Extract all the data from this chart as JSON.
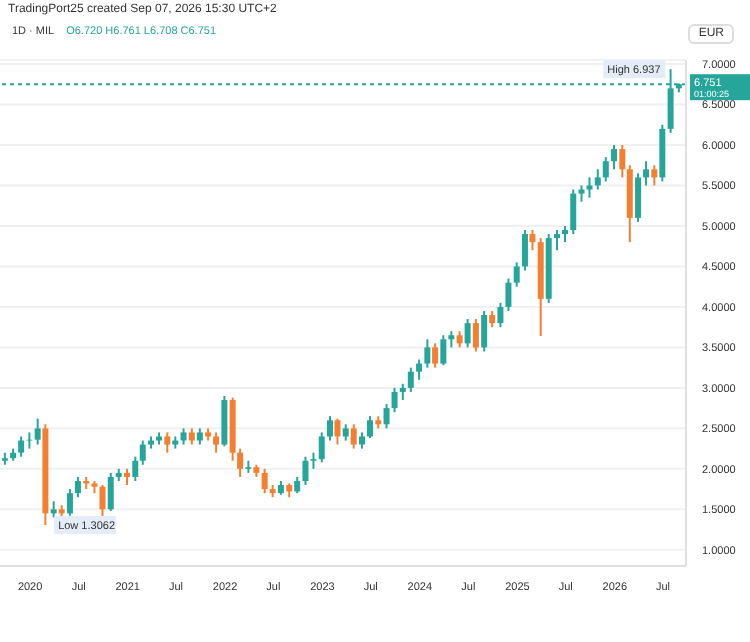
{
  "chart_data": {
    "type": "candlestick",
    "title": "1D · MIL",
    "subtitle": "TradingPort25 created Sep 07, 2026 15:30 UTC+2",
    "ylabel": "EUR",
    "annotations": [
      "O6.720 H6.761 L6.708 C6.751",
      "01:00:25",
      {
        "text": "High 6.937",
        "x": "2026-08",
        "y": 6.937
      },
      {
        "text": "Low 1.3062",
        "x": "2020-03",
        "y": 1.3062
      }
    ],
    "x": [
      "2019-10",
      "2019-11",
      "2019-12",
      "2020-01",
      "2020-02",
      "2020-03",
      "2020-04",
      "2020-05",
      "2020-06",
      "2020-07",
      "2020-08",
      "2020-09",
      "2020-10",
      "2020-11",
      "2020-12",
      "2021-01",
      "2021-02",
      "2021-03",
      "2021-04",
      "2021-05",
      "2021-06",
      "2021-07",
      "2021-08",
      "2021-09",
      "2021-10",
      "2021-11",
      "2021-12",
      "2022-01",
      "2022-02",
      "2022-03",
      "2022-04",
      "2022-05",
      "2022-06",
      "2022-07",
      "2022-08",
      "2022-09",
      "2022-10",
      "2022-11",
      "2022-12",
      "2023-01",
      "2023-02",
      "2023-03",
      "2023-04",
      "2023-05",
      "2023-06",
      "2023-07",
      "2023-08",
      "2023-09",
      "2023-10",
      "2023-11",
      "2023-12",
      "2024-01",
      "2024-02",
      "2024-03",
      "2024-04",
      "2024-05",
      "2024-06",
      "2024-07",
      "2024-08",
      "2024-09",
      "2024-10",
      "2024-11",
      "2024-12",
      "2025-01",
      "2025-02",
      "2025-03",
      "2025-04",
      "2025-05",
      "2025-06",
      "2025-07",
      "2025-08",
      "2025-09",
      "2025-10",
      "2025-11",
      "2025-12",
      "2026-01",
      "2026-02",
      "2026-03",
      "2026-04",
      "2026-05",
      "2026-06",
      "2026-07",
      "2026-08",
      "2026-09"
    ],
    "ohlc": [
      [
        2.1,
        2.2,
        2.05,
        2.13
      ],
      [
        2.13,
        2.25,
        2.1,
        2.2
      ],
      [
        2.2,
        2.4,
        2.15,
        2.35
      ],
      [
        2.35,
        2.45,
        2.25,
        2.36
      ],
      [
        2.36,
        2.62,
        2.3,
        2.5
      ],
      [
        2.5,
        2.55,
        1.3062,
        1.45
      ],
      [
        1.45,
        1.6,
        1.4,
        1.5
      ],
      [
        1.5,
        1.55,
        1.4,
        1.45
      ],
      [
        1.45,
        1.75,
        1.42,
        1.7
      ],
      [
        1.7,
        1.9,
        1.65,
        1.85
      ],
      [
        1.85,
        1.9,
        1.75,
        1.82
      ],
      [
        1.82,
        1.85,
        1.7,
        1.78
      ],
      [
        1.78,
        1.8,
        1.37,
        1.5
      ],
      [
        1.5,
        1.95,
        1.48,
        1.9
      ],
      [
        1.9,
        2.0,
        1.85,
        1.95
      ],
      [
        1.95,
        2.0,
        1.8,
        1.9
      ],
      [
        1.9,
        2.15,
        1.85,
        2.1
      ],
      [
        2.1,
        2.35,
        2.05,
        2.3
      ],
      [
        2.3,
        2.4,
        2.25,
        2.35
      ],
      [
        2.35,
        2.45,
        2.3,
        2.4
      ],
      [
        2.4,
        2.45,
        2.2,
        2.3
      ],
      [
        2.3,
        2.4,
        2.25,
        2.35
      ],
      [
        2.35,
        2.5,
        2.3,
        2.45
      ],
      [
        2.45,
        2.5,
        2.3,
        2.35
      ],
      [
        2.35,
        2.5,
        2.3,
        2.45
      ],
      [
        2.45,
        2.5,
        2.35,
        2.4
      ],
      [
        2.4,
        2.45,
        2.2,
        2.3
      ],
      [
        2.3,
        2.9,
        2.28,
        2.85
      ],
      [
        2.85,
        2.88,
        2.1,
        2.2
      ],
      [
        2.2,
        2.25,
        1.9,
        2.0
      ],
      [
        2.0,
        2.1,
        1.95,
        2.02
      ],
      [
        2.02,
        2.05,
        1.9,
        1.95
      ],
      [
        1.95,
        2.0,
        1.7,
        1.75
      ],
      [
        1.75,
        1.8,
        1.65,
        1.7
      ],
      [
        1.7,
        1.85,
        1.68,
        1.8
      ],
      [
        1.8,
        1.82,
        1.65,
        1.72
      ],
      [
        1.72,
        1.9,
        1.7,
        1.85
      ],
      [
        1.85,
        2.15,
        1.8,
        2.1
      ],
      [
        2.1,
        2.2,
        2.0,
        2.12
      ],
      [
        2.12,
        2.45,
        2.08,
        2.4
      ],
      [
        2.4,
        2.65,
        2.35,
        2.6
      ],
      [
        2.6,
        2.62,
        2.3,
        2.4
      ],
      [
        2.4,
        2.55,
        2.35,
        2.5
      ],
      [
        2.5,
        2.55,
        2.25,
        2.3
      ],
      [
        2.3,
        2.45,
        2.25,
        2.4
      ],
      [
        2.4,
        2.65,
        2.38,
        2.6
      ],
      [
        2.6,
        2.65,
        2.5,
        2.55
      ],
      [
        2.55,
        2.8,
        2.5,
        2.75
      ],
      [
        2.75,
        3.0,
        2.7,
        2.95
      ],
      [
        2.95,
        3.05,
        2.85,
        3.0
      ],
      [
        3.0,
        3.25,
        2.95,
        3.2
      ],
      [
        3.2,
        3.35,
        3.1,
        3.3
      ],
      [
        3.3,
        3.6,
        3.25,
        3.5
      ],
      [
        3.5,
        3.55,
        3.25,
        3.3
      ],
      [
        3.3,
        3.65,
        3.28,
        3.6
      ],
      [
        3.6,
        3.7,
        3.5,
        3.65
      ],
      [
        3.65,
        3.7,
        3.5,
        3.55
      ],
      [
        3.55,
        3.85,
        3.5,
        3.8
      ],
      [
        3.8,
        3.85,
        3.45,
        3.5
      ],
      [
        3.5,
        3.95,
        3.45,
        3.9
      ],
      [
        3.9,
        3.95,
        3.75,
        3.8
      ],
      [
        3.8,
        4.05,
        3.75,
        4.0
      ],
      [
        4.0,
        4.35,
        3.95,
        4.3
      ],
      [
        4.3,
        4.55,
        4.25,
        4.5
      ],
      [
        4.5,
        4.95,
        4.45,
        4.9
      ],
      [
        4.9,
        4.95,
        4.7,
        4.8
      ],
      [
        4.8,
        4.85,
        3.64,
        4.1
      ],
      [
        4.1,
        4.9,
        4.05,
        4.85
      ],
      [
        4.85,
        4.95,
        4.7,
        4.9
      ],
      [
        4.9,
        5.0,
        4.8,
        4.95
      ],
      [
        4.95,
        5.45,
        4.9,
        5.4
      ],
      [
        5.4,
        5.5,
        5.3,
        5.45
      ],
      [
        5.45,
        5.6,
        5.35,
        5.5
      ],
      [
        5.5,
        5.7,
        5.45,
        5.6
      ],
      [
        5.6,
        5.85,
        5.55,
        5.8
      ],
      [
        5.8,
        6.0,
        5.7,
        5.95
      ],
      [
        5.95,
        6.0,
        5.6,
        5.7
      ],
      [
        5.7,
        5.75,
        4.8,
        5.1
      ],
      [
        5.1,
        5.65,
        5.05,
        5.6
      ],
      [
        5.6,
        5.8,
        5.5,
        5.7
      ],
      [
        5.7,
        5.75,
        5.5,
        5.6
      ],
      [
        5.6,
        6.25,
        5.55,
        6.2
      ],
      [
        6.2,
        6.937,
        6.15,
        6.7
      ],
      [
        6.7,
        6.761,
        6.65,
        6.751
      ]
    ],
    "colors": [
      "#26a69a",
      "#26a69a",
      "#26a69a",
      "#26a69a",
      "#26a69a",
      "#f57f31",
      "#26a69a",
      "#f57f31",
      "#26a69a",
      "#26a69a",
      "#f57f31",
      "#f57f31",
      "#f57f31",
      "#26a69a",
      "#26a69a",
      "#f57f31",
      "#26a69a",
      "#26a69a",
      "#26a69a",
      "#26a69a",
      "#f57f31",
      "#26a69a",
      "#26a69a",
      "#f57f31",
      "#26a69a",
      "#f57f31",
      "#f57f31",
      "#26a69a",
      "#f57f31",
      "#f57f31",
      "#26a69a",
      "#f57f31",
      "#f57f31",
      "#f57f31",
      "#26a69a",
      "#f57f31",
      "#26a69a",
      "#26a69a",
      "#26a69a",
      "#26a69a",
      "#26a69a",
      "#f57f31",
      "#26a69a",
      "#f57f31",
      "#26a69a",
      "#26a69a",
      "#f57f31",
      "#26a69a",
      "#26a69a",
      "#26a69a",
      "#26a69a",
      "#26a69a",
      "#26a69a",
      "#f57f31",
      "#26a69a",
      "#26a69a",
      "#f57f31",
      "#26a69a",
      "#f57f31",
      "#26a69a",
      "#f57f31",
      "#26a69a",
      "#26a69a",
      "#26a69a",
      "#26a69a",
      "#f57f31",
      "#f57f31",
      "#26a69a",
      "#26a69a",
      "#26a69a",
      "#26a69a",
      "#26a69a",
      "#26a69a",
      "#26a69a",
      "#26a69a",
      "#26a69a",
      "#f57f31",
      "#f57f31",
      "#26a69a",
      "#26a69a",
      "#f57f31",
      "#26a69a",
      "#26a69a",
      "#26a69a"
    ],
    "ref_lines": [
      {
        "axis": "y",
        "value": 6.751,
        "label": "6.751",
        "color": "#26a69a",
        "line_style": "dotted"
      }
    ],
    "xlim": [
      "2019-09-10",
      "2026-09-25"
    ],
    "xticks": [
      {
        "value": "2020-01",
        "label": "2020"
      },
      {
        "value": "2020-07",
        "label": "Jul"
      },
      {
        "value": "2021-01",
        "label": "2021"
      },
      {
        "value": "2021-07",
        "label": "Jul"
      },
      {
        "value": "2022-01",
        "label": "2022"
      },
      {
        "value": "2022-07",
        "label": "Jul"
      },
      {
        "value": "2023-01",
        "label": "2023"
      },
      {
        "value": "2023-07",
        "label": "Jul"
      },
      {
        "value": "2024-01",
        "label": "2024"
      },
      {
        "value": "2024-07",
        "label": "Jul"
      },
      {
        "value": "2025-01",
        "label": "2025"
      },
      {
        "value": "2025-07",
        "label": "Jul"
      },
      {
        "value": "2026-01",
        "label": "2026"
      },
      {
        "value": "2026-07",
        "label": "Jul"
      }
    ],
    "ylim": [
      0.8,
      7.05
    ],
    "yticks": [
      {
        "value": 1,
        "label": "1.0000"
      },
      {
        "value": 1.5,
        "label": "1.5000"
      },
      {
        "value": 2,
        "label": "2.0000"
      },
      {
        "value": 2.5,
        "label": "2.5000"
      },
      {
        "value": 3,
        "label": "3.0000"
      },
      {
        "value": 3.5,
        "label": "3.5000"
      },
      {
        "value": 4,
        "label": "4.0000"
      },
      {
        "value": 4.5,
        "label": "4.5000"
      },
      {
        "value": 5,
        "label": "5.0000"
      },
      {
        "value": 5.5,
        "label": "5.5000"
      },
      {
        "value": 6,
        "label": "6.0000"
      },
      {
        "value": 6.5,
        "label": "6.5000"
      },
      {
        "value": 7,
        "label": "7.0000"
      }
    ],
    "grid": "y",
    "legend": false
  }
}
